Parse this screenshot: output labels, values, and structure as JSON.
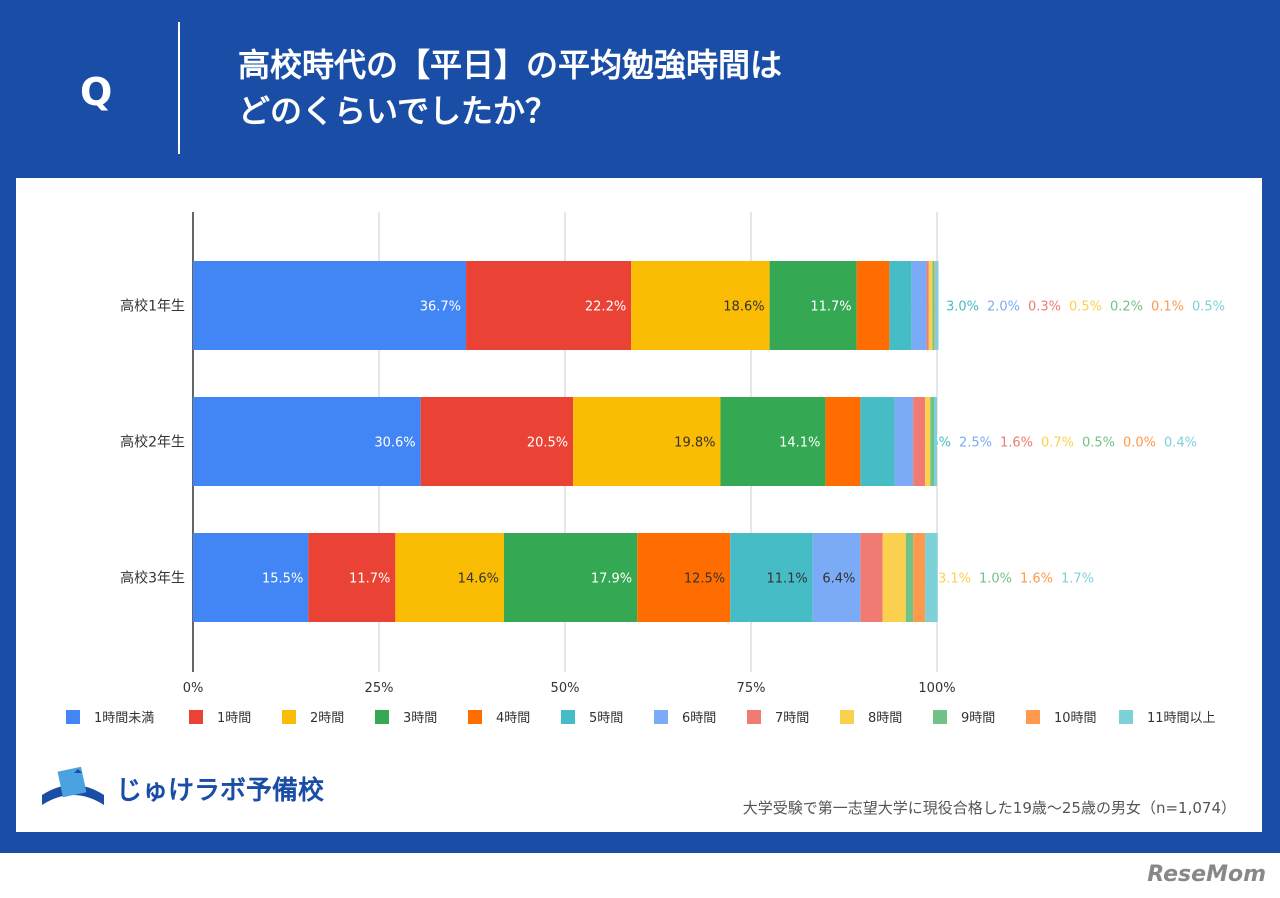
{
  "header": {
    "q": "Q",
    "title_line1": "高校時代の【平日】の平均勉強時間は",
    "title_line2": "どのくらいでしたか？"
  },
  "footer": {
    "logo": "じゅけラボ予備校",
    "note": "大学受験で第一志望大学に現役合格した19歳～25歳の男女（n=1,074）",
    "watermark": "ReseMom"
  },
  "chart_data": {
    "type": "bar",
    "orientation": "horizontal",
    "stacked": "percent",
    "categories": [
      "高校1年生",
      "高校2年生",
      "高校3年生"
    ],
    "xlim": [
      0,
      100
    ],
    "xticks": [
      "0%",
      "25%",
      "50%",
      "75%",
      "100%"
    ],
    "grid": true,
    "legend_position": "bottom",
    "series": [
      {
        "name": "1時間未満",
        "color": "#4285f4",
        "values": [
          36.7,
          30.6,
          15.5
        ]
      },
      {
        "name": "1時間",
        "color": "#ea4335",
        "values": [
          22.2,
          20.5,
          11.7
        ]
      },
      {
        "name": "2時間",
        "color": "#fbbc04",
        "values": [
          18.6,
          19.8,
          14.6
        ]
      },
      {
        "name": "3時間",
        "color": "#34a853",
        "values": [
          11.7,
          14.1,
          17.9
        ]
      },
      {
        "name": "4時間",
        "color": "#ff6d01",
        "values": [
          4.4,
          4.7,
          12.5
        ]
      },
      {
        "name": "5時間",
        "color": "#46bdc6",
        "values": [
          3.0,
          4.6,
          11.1
        ]
      },
      {
        "name": "6時間",
        "color": "#7baaf7",
        "values": [
          2.0,
          2.5,
          6.4
        ]
      },
      {
        "name": "7時間",
        "color": "#f07b72",
        "values": [
          0.3,
          1.6,
          3.0
        ]
      },
      {
        "name": "8時間",
        "color": "#fcd04f",
        "values": [
          0.5,
          0.7,
          3.1
        ]
      },
      {
        "name": "9時間",
        "color": "#71c287",
        "values": [
          0.2,
          0.5,
          1.0
        ]
      },
      {
        "name": "10時間",
        "color": "#ff994d",
        "values": [
          0.1,
          0.0,
          1.6
        ]
      },
      {
        "name": "11時間以上",
        "color": "#7ed1d7",
        "values": [
          0.5,
          0.4,
          1.7
        ]
      }
    ]
  }
}
